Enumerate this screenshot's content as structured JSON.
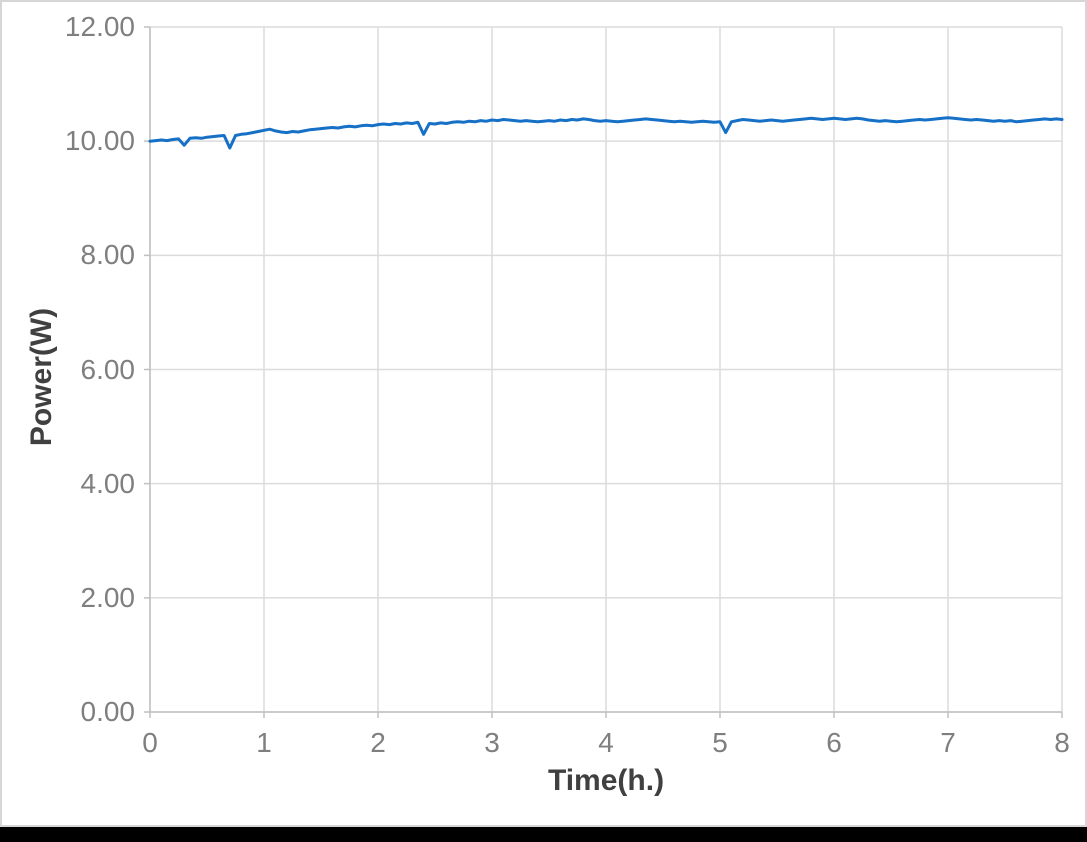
{
  "window": {
    "background": "#FFFFFF",
    "frame_border_color": "#D6D6D6",
    "bottom_bar_color": "#000000"
  },
  "chart_data": {
    "type": "line",
    "title": "",
    "xlabel": "Time(h.)",
    "ylabel": "Power(W)",
    "xlim": [
      0,
      8
    ],
    "ylim": [
      0,
      12
    ],
    "grid": true,
    "legend_position": "none",
    "x_tick_values": [
      0,
      1,
      2,
      3,
      4,
      5,
      6,
      7,
      8
    ],
    "x_tick_labels": [
      "0",
      "1",
      "2",
      "3",
      "4",
      "5",
      "6",
      "7",
      "8"
    ],
    "y_tick_values": [
      0,
      2,
      4,
      6,
      8,
      10,
      12
    ],
    "y_tick_labels": [
      "0.00",
      "2.00",
      "4.00",
      "6.00",
      "8.00",
      "10.00",
      "12.00"
    ],
    "colors": {
      "line": "#1570C6",
      "grid": "#DCDCDC",
      "axis": "#C0C0C0",
      "tick_label": "#7F7F7F",
      "axis_title": "#404040",
      "frame": "#D6D6D6"
    },
    "series": [
      {
        "name": "Power",
        "color": "#1570C6",
        "x_start": 0,
        "x_step": 0.05,
        "values": [
          10.0,
          10.01,
          10.02,
          10.01,
          10.03,
          10.04,
          9.93,
          10.05,
          10.06,
          10.05,
          10.07,
          10.08,
          10.09,
          10.1,
          9.88,
          10.1,
          10.12,
          10.13,
          10.15,
          10.17,
          10.19,
          10.21,
          10.18,
          10.16,
          10.15,
          10.17,
          10.16,
          10.18,
          10.2,
          10.21,
          10.22,
          10.23,
          10.24,
          10.23,
          10.25,
          10.26,
          10.25,
          10.27,
          10.28,
          10.27,
          10.29,
          10.3,
          10.29,
          10.31,
          10.3,
          10.32,
          10.31,
          10.33,
          10.12,
          10.31,
          10.3,
          10.32,
          10.31,
          10.33,
          10.34,
          10.33,
          10.35,
          10.34,
          10.36,
          10.35,
          10.37,
          10.36,
          10.38,
          10.37,
          10.36,
          10.35,
          10.36,
          10.35,
          10.34,
          10.35,
          10.36,
          10.35,
          10.37,
          10.36,
          10.38,
          10.37,
          10.39,
          10.38,
          10.36,
          10.35,
          10.36,
          10.35,
          10.34,
          10.35,
          10.36,
          10.37,
          10.38,
          10.39,
          10.38,
          10.37,
          10.36,
          10.35,
          10.34,
          10.35,
          10.34,
          10.33,
          10.34,
          10.35,
          10.34,
          10.33,
          10.34,
          10.15,
          10.34,
          10.36,
          10.38,
          10.37,
          10.36,
          10.35,
          10.36,
          10.37,
          10.36,
          10.35,
          10.36,
          10.37,
          10.38,
          10.39,
          10.4,
          10.39,
          10.38,
          10.39,
          10.4,
          10.39,
          10.38,
          10.39,
          10.4,
          10.39,
          10.37,
          10.36,
          10.35,
          10.36,
          10.35,
          10.34,
          10.35,
          10.36,
          10.37,
          10.38,
          10.37,
          10.38,
          10.39,
          10.4,
          10.41,
          10.4,
          10.39,
          10.38,
          10.37,
          10.38,
          10.37,
          10.36,
          10.35,
          10.36,
          10.35,
          10.36,
          10.34,
          10.35,
          10.36,
          10.37,
          10.38,
          10.39,
          10.38,
          10.39,
          10.38
        ]
      }
    ]
  }
}
